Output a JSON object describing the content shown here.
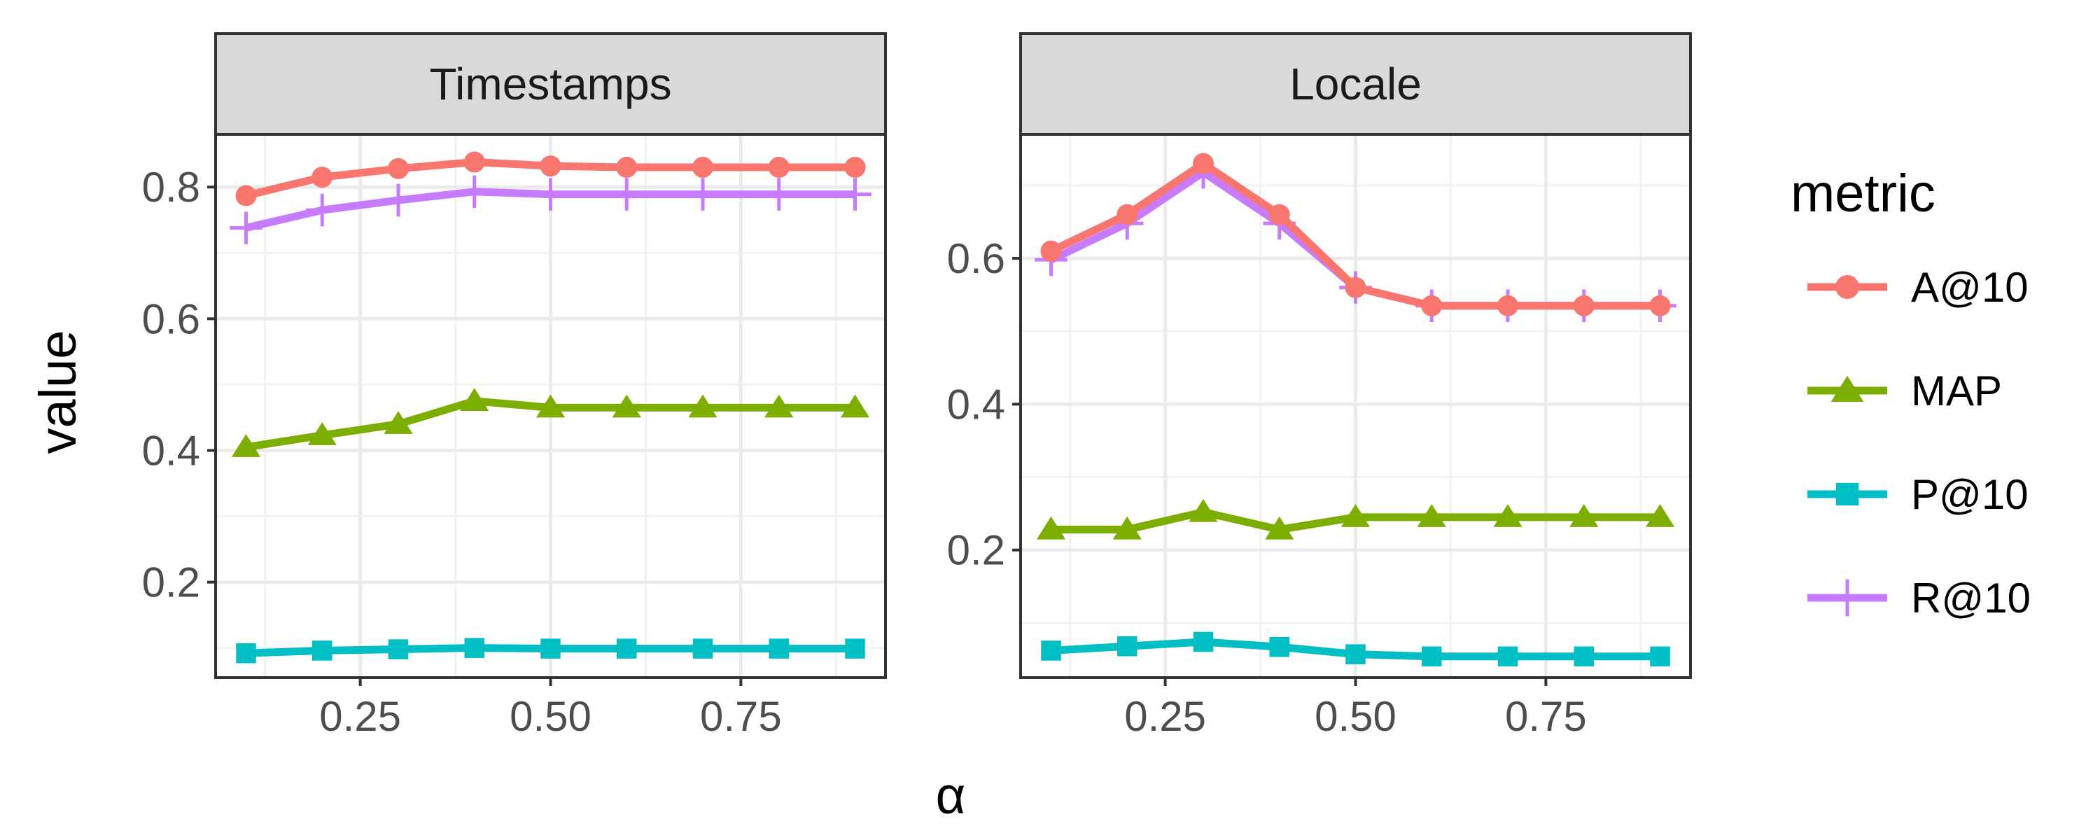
{
  "chart_data": {
    "type": "line",
    "xlabel": "α",
    "ylabel": "value",
    "legend": {
      "title": "metric",
      "position": "right",
      "entries": [
        "A@10",
        "MAP",
        "P@10",
        "R@10"
      ]
    },
    "grid": true,
    "x": [
      0.1,
      0.2,
      0.3,
      0.4,
      0.5,
      0.6,
      0.7,
      0.8,
      0.9
    ],
    "xticks": [
      {
        "value": 0.25,
        "label": "0.25"
      },
      {
        "value": 0.5,
        "label": "0.50"
      },
      {
        "value": 0.75,
        "label": "0.75"
      }
    ],
    "xlim": [
      0.06,
      0.94
    ],
    "series_styles": [
      {
        "name": "A@10",
        "color": "#F8766D",
        "marker": "circle"
      },
      {
        "name": "MAP",
        "color": "#7CAE00",
        "marker": "triangle"
      },
      {
        "name": "P@10",
        "color": "#00BFC4",
        "marker": "square"
      },
      {
        "name": "R@10",
        "color": "#C77CFF",
        "marker": "plus"
      }
    ],
    "panels": [
      {
        "title": "Timestamps",
        "ylim": [
          0.055,
          0.88
        ],
        "yticks": [
          {
            "value": 0.2,
            "label": "0.2"
          },
          {
            "value": 0.4,
            "label": "0.4"
          },
          {
            "value": 0.6,
            "label": "0.6"
          },
          {
            "value": 0.8,
            "label": "0.8"
          }
        ],
        "series": [
          {
            "name": "A@10",
            "values": [
              0.787,
              0.815,
              0.828,
              0.838,
              0.832,
              0.83,
              0.83,
              0.83,
              0.83
            ]
          },
          {
            "name": "MAP",
            "values": [
              0.405,
              0.423,
              0.44,
              0.475,
              0.465,
              0.465,
              0.465,
              0.465,
              0.465
            ]
          },
          {
            "name": "P@10",
            "values": [
              0.092,
              0.096,
              0.098,
              0.1,
              0.099,
              0.099,
              0.099,
              0.099,
              0.099
            ]
          },
          {
            "name": "R@10",
            "values": [
              0.738,
              0.765,
              0.78,
              0.793,
              0.789,
              0.789,
              0.789,
              0.789,
              0.789
            ]
          }
        ]
      },
      {
        "title": "Locale",
        "ylim": [
          0.025,
          0.77
        ],
        "yticks": [
          {
            "value": 0.2,
            "label": "0.2"
          },
          {
            "value": 0.4,
            "label": "0.4"
          },
          {
            "value": 0.6,
            "label": "0.6"
          }
        ],
        "series": [
          {
            "name": "A@10",
            "values": [
              0.61,
              0.66,
              0.73,
              0.66,
              0.56,
              0.535,
              0.535,
              0.535,
              0.535
            ]
          },
          {
            "name": "MAP",
            "values": [
              0.228,
              0.228,
              0.252,
              0.228,
              0.245,
              0.245,
              0.245,
              0.245,
              0.245
            ]
          },
          {
            "name": "P@10",
            "values": [
              0.062,
              0.068,
              0.074,
              0.067,
              0.057,
              0.054,
              0.054,
              0.054,
              0.054
            ]
          },
          {
            "name": "R@10",
            "values": [
              0.598,
              0.648,
              0.718,
              0.648,
              0.56,
              0.535,
              0.535,
              0.535,
              0.535
            ]
          }
        ]
      }
    ]
  }
}
